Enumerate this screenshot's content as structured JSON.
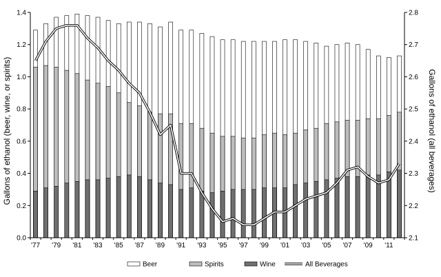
{
  "chart_data": {
    "type": "bar",
    "title": "",
    "x_tick_labels": [
      "'77",
      "'79",
      "'81",
      "'83",
      "'85",
      "'87",
      "'89",
      "'91",
      "'93",
      "'95",
      "'97",
      "'99",
      "'01",
      "'03",
      "'05",
      "'07",
      "'09",
      "'11"
    ],
    "x": [
      1977,
      1978,
      1979,
      1980,
      1981,
      1982,
      1983,
      1984,
      1985,
      1986,
      1987,
      1988,
      1989,
      1990,
      1991,
      1992,
      1993,
      1994,
      1995,
      1996,
      1997,
      1998,
      1999,
      2000,
      2001,
      2002,
      2003,
      2004,
      2005,
      2006,
      2007,
      2008,
      2009,
      2010,
      2011,
      2012
    ],
    "ylabel": "Gallons of ethanol (beer, wine, or spirits)",
    "ylabel_right": "Gallons of ethanol (all beverages)",
    "ylim": [
      0,
      1.4
    ],
    "y_ticks": [
      "0.0",
      "0.2",
      "0.4",
      "0.6",
      "0.8",
      "1.0",
      "1.2",
      "1.4"
    ],
    "ylim_right": [
      2.1,
      2.8
    ],
    "y_ticks_right": [
      "2.1",
      "2.2",
      "2.3",
      "2.4",
      "2.5",
      "2.6",
      "2.7",
      "2.8"
    ],
    "series": [
      {
        "name": "Beer",
        "axis": "left",
        "color": "#ffffff",
        "values": [
          1.29,
          1.33,
          1.37,
          1.38,
          1.39,
          1.38,
          1.37,
          1.35,
          1.33,
          1.34,
          1.34,
          1.33,
          1.31,
          1.34,
          1.29,
          1.29,
          1.27,
          1.25,
          1.23,
          1.23,
          1.22,
          1.22,
          1.22,
          1.22,
          1.23,
          1.23,
          1.22,
          1.21,
          1.19,
          1.2,
          1.21,
          1.2,
          1.17,
          1.13,
          1.12,
          1.13
        ]
      },
      {
        "name": "Spirits",
        "axis": "left",
        "color": "#bdbdbd",
        "values": [
          1.06,
          1.07,
          1.06,
          1.04,
          1.02,
          0.98,
          0.96,
          0.94,
          0.9,
          0.84,
          0.82,
          0.78,
          0.77,
          0.77,
          0.71,
          0.71,
          0.68,
          0.65,
          0.63,
          0.63,
          0.62,
          0.62,
          0.64,
          0.65,
          0.64,
          0.65,
          0.67,
          0.68,
          0.71,
          0.72,
          0.73,
          0.73,
          0.74,
          0.74,
          0.76,
          0.78
        ]
      },
      {
        "name": "Wine",
        "axis": "left",
        "color": "#707070",
        "values": [
          0.29,
          0.31,
          0.32,
          0.34,
          0.35,
          0.36,
          0.36,
          0.37,
          0.38,
          0.39,
          0.38,
          0.36,
          0.34,
          0.33,
          0.3,
          0.31,
          0.29,
          0.28,
          0.29,
          0.3,
          0.3,
          0.3,
          0.31,
          0.31,
          0.31,
          0.33,
          0.34,
          0.35,
          0.36,
          0.37,
          0.38,
          0.38,
          0.39,
          0.39,
          0.41,
          0.42
        ]
      },
      {
        "name": "All Beverages",
        "axis": "right",
        "type": "line",
        "values": [
          2.65,
          2.71,
          2.75,
          2.76,
          2.76,
          2.72,
          2.69,
          2.65,
          2.62,
          2.58,
          2.55,
          2.49,
          2.42,
          2.45,
          2.3,
          2.3,
          2.24,
          2.19,
          2.15,
          2.16,
          2.14,
          2.14,
          2.16,
          2.18,
          2.18,
          2.2,
          2.22,
          2.23,
          2.24,
          2.27,
          2.31,
          2.32,
          2.29,
          2.27,
          2.28,
          2.33
        ]
      }
    ],
    "grid": false,
    "legend": "bottom"
  }
}
